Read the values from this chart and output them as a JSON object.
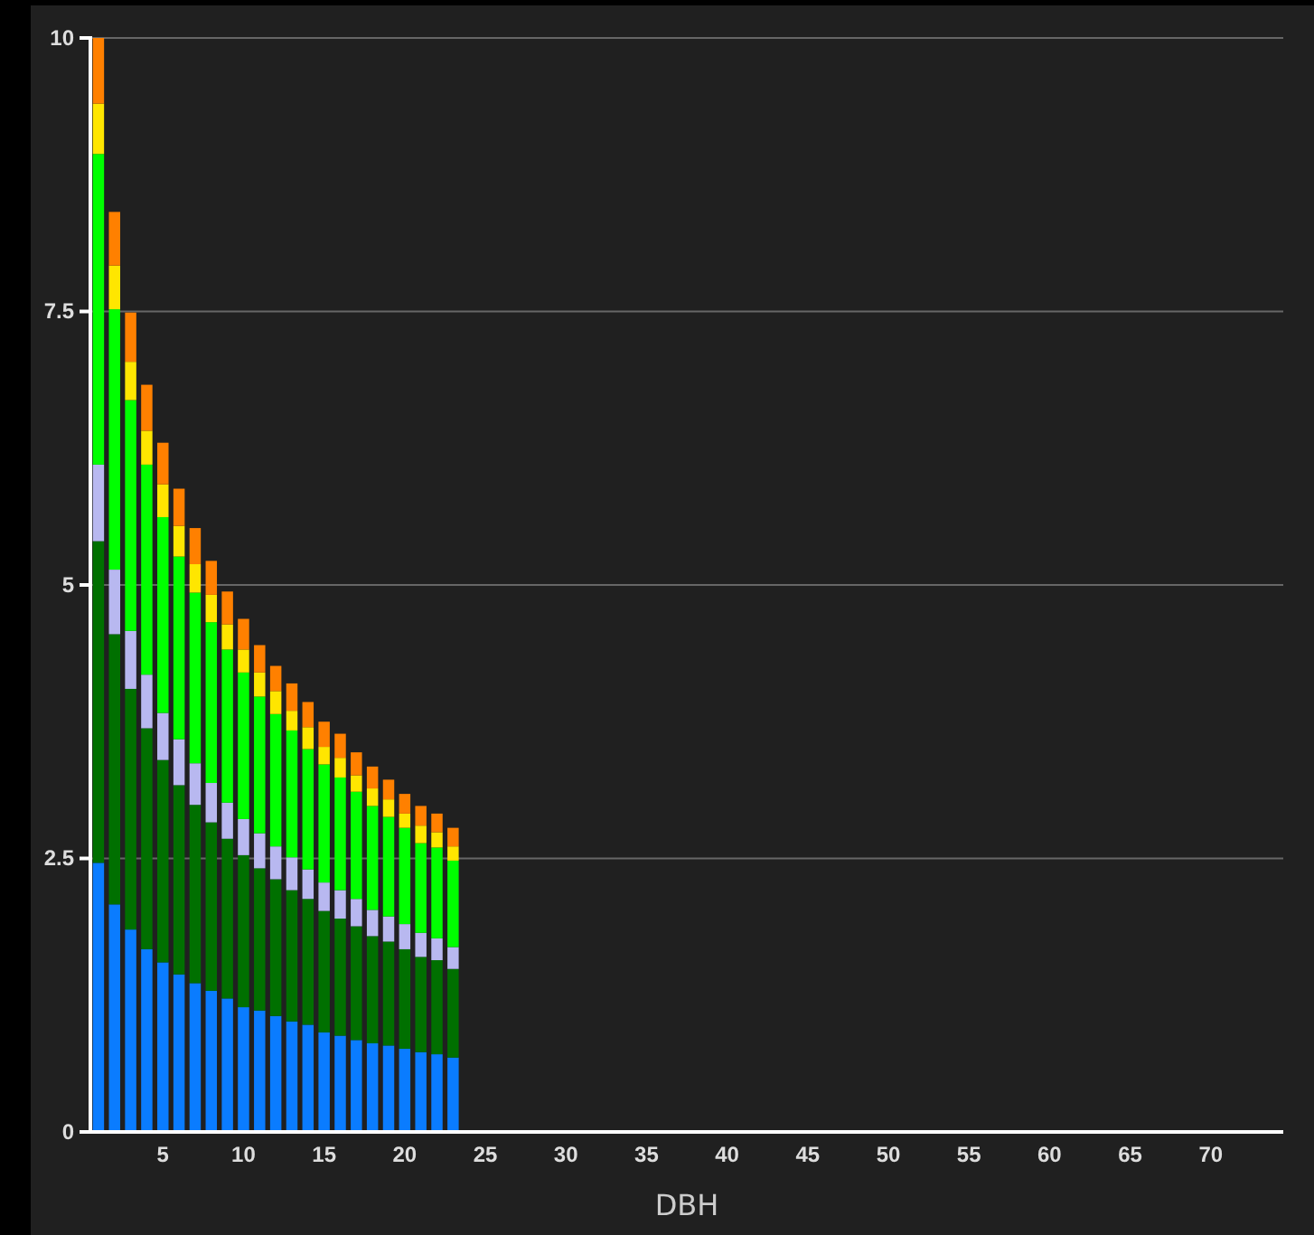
{
  "chart_data": {
    "type": "bar",
    "stacked": true,
    "xlabel": "DBH",
    "categories": [
      null,
      null,
      null,
      null,
      "5",
      null,
      null,
      null,
      null,
      "10",
      null,
      null,
      null,
      null,
      "15",
      null,
      null,
      null,
      null,
      "20",
      null,
      null,
      null,
      null,
      "25",
      null,
      null,
      null,
      null,
      "30",
      null,
      null,
      null,
      null,
      "35",
      null,
      null,
      null,
      null,
      "40",
      null,
      null,
      null,
      null,
      "45",
      null,
      null,
      null,
      null,
      "50",
      null,
      null,
      null,
      null,
      "55",
      null,
      null,
      null,
      null,
      "60",
      null,
      null,
      null,
      null,
      "65",
      null,
      null,
      null,
      null,
      "70",
      null,
      null,
      null,
      null
    ],
    "ylim": [
      0,
      10
    ],
    "yticks": [
      0,
      2.5,
      5,
      7.5,
      10
    ],
    "grid": "y",
    "series": [
      {
        "color": "#0a7cff",
        "values": [
          2.46,
          2.08,
          1.85,
          1.67,
          1.55,
          1.44,
          1.36,
          1.29,
          1.22,
          1.14,
          1.11,
          1.06,
          1.01,
          0.98,
          0.91,
          0.88,
          0.84,
          0.81,
          0.79,
          0.76,
          0.73,
          0.71,
          0.68,
          null,
          null,
          null,
          null,
          null,
          null,
          null,
          null,
          null,
          null,
          null,
          null,
          null,
          null,
          null,
          null,
          null,
          null,
          null,
          null,
          null,
          null,
          null,
          null,
          null,
          null,
          null,
          null,
          null,
          null,
          null,
          null,
          null,
          null,
          null,
          null,
          null,
          null,
          null,
          null,
          null,
          null,
          null,
          null,
          null,
          null,
          null,
          null,
          null,
          null,
          null
        ]
      },
      {
        "color": "#007000",
        "values": [
          2.94,
          2.47,
          2.2,
          2.02,
          1.85,
          1.73,
          1.63,
          1.54,
          1.46,
          1.39,
          1.3,
          1.25,
          1.2,
          1.15,
          1.11,
          1.07,
          1.04,
          0.98,
          0.95,
          0.91,
          0.87,
          0.86,
          0.81,
          null,
          null,
          null,
          null,
          null,
          null,
          null,
          null,
          null,
          null,
          null,
          null,
          null,
          null,
          null,
          null,
          null,
          null,
          null,
          null,
          null,
          null,
          null,
          null,
          null,
          null,
          null,
          null,
          null,
          null,
          null,
          null,
          null,
          null,
          null,
          null,
          null,
          null,
          null,
          null,
          null,
          null,
          null,
          null,
          null,
          null,
          null,
          null,
          null,
          null,
          null
        ]
      },
      {
        "color": "#b8b8f0",
        "values": [
          0.7,
          0.59,
          0.53,
          0.49,
          0.43,
          0.42,
          0.38,
          0.36,
          0.33,
          0.33,
          0.32,
          0.3,
          0.3,
          0.27,
          0.26,
          0.26,
          0.25,
          0.24,
          0.23,
          0.23,
          0.22,
          0.2,
          0.2,
          null,
          null,
          null,
          null,
          null,
          null,
          null,
          null,
          null,
          null,
          null,
          null,
          null,
          null,
          null,
          null,
          null,
          null,
          null,
          null,
          null,
          null,
          null,
          null,
          null,
          null,
          null,
          null,
          null,
          null,
          null,
          null,
          null,
          null,
          null,
          null,
          null,
          null,
          null,
          null,
          null,
          null,
          null,
          null,
          null,
          null,
          null,
          null,
          null,
          null,
          null
        ]
      },
      {
        "color": "#00ff00",
        "values": [
          2.84,
          2.38,
          2.11,
          1.92,
          1.79,
          1.67,
          1.56,
          1.47,
          1.4,
          1.34,
          1.25,
          1.21,
          1.16,
          1.1,
          1.08,
          1.03,
          0.98,
          0.95,
          0.91,
          0.88,
          0.82,
          0.83,
          0.79,
          null,
          null,
          null,
          null,
          null,
          null,
          null,
          null,
          null,
          null,
          null,
          null,
          null,
          null,
          null,
          null,
          null,
          null,
          null,
          null,
          null,
          null,
          null,
          null,
          null,
          null,
          null,
          null,
          null,
          null,
          null,
          null,
          null,
          null,
          null,
          null,
          null,
          null,
          null,
          null,
          null,
          null,
          null,
          null,
          null,
          null,
          null,
          null,
          null,
          null,
          null
        ]
      },
      {
        "color": "#ffe600",
        "values": [
          0.46,
          0.4,
          0.35,
          0.31,
          0.3,
          0.28,
          0.26,
          0.25,
          0.23,
          0.21,
          0.22,
          0.21,
          0.18,
          0.2,
          0.16,
          0.18,
          0.15,
          0.16,
          0.16,
          0.13,
          0.16,
          0.14,
          0.13,
          null,
          null,
          null,
          null,
          null,
          null,
          null,
          null,
          null,
          null,
          null,
          null,
          null,
          null,
          null,
          null,
          null,
          null,
          null,
          null,
          null,
          null,
          null,
          null,
          null,
          null,
          null,
          null,
          null,
          null,
          null,
          null,
          null,
          null,
          null,
          null,
          null,
          null,
          null,
          null,
          null,
          null,
          null,
          null,
          null,
          null,
          null,
          null,
          null,
          null,
          null
        ]
      },
      {
        "color": "#ff8000",
        "values": [
          0.6,
          0.49,
          0.45,
          0.42,
          0.38,
          0.34,
          0.33,
          0.31,
          0.3,
          0.28,
          0.25,
          0.23,
          0.25,
          0.23,
          0.23,
          0.22,
          0.21,
          0.2,
          0.18,
          0.18,
          0.18,
          0.17,
          0.17,
          null,
          null,
          null,
          null,
          null,
          null,
          null,
          null,
          null,
          null,
          null,
          null,
          null,
          null,
          null,
          null,
          null,
          null,
          null,
          null,
          null,
          null,
          null,
          null,
          null,
          null,
          null,
          null,
          null,
          null,
          null,
          null,
          null,
          null,
          null,
          null,
          null,
          null,
          null,
          null,
          null,
          null,
          null,
          null,
          null,
          null,
          null,
          null,
          null,
          null,
          null
        ]
      }
    ]
  }
}
